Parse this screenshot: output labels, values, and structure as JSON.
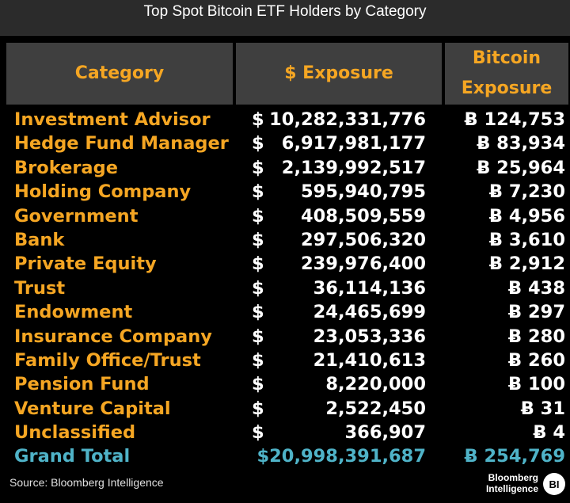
{
  "title": "Top Spot Bitcoin ETF Holders by Category",
  "headers": {
    "category": "Category",
    "exposure": "$ Exposure",
    "btc_line1": "Bitcoin",
    "btc_line2": "Exposure"
  },
  "colors": {
    "accent_orange": "#f5a623",
    "total_teal": "#4fb3c8",
    "header_bg": "#3f3f3f",
    "title_bg": "#2b2b2b"
  },
  "chart_data": {
    "type": "table",
    "columns": [
      "Category",
      "$ Exposure",
      "Bitcoin Exposure"
    ],
    "rows": [
      {
        "category": "Investment Advisor",
        "dollar": "$",
        "exposure": "10,282,331,776",
        "btc": "Ƀ 124,753"
      },
      {
        "category": "Hedge Fund Manager",
        "dollar": "$",
        "exposure": "6,917,981,177",
        "btc": "Ƀ 83,934"
      },
      {
        "category": "Brokerage",
        "dollar": "$",
        "exposure": "2,139,992,517",
        "btc": "Ƀ 25,964"
      },
      {
        "category": "Holding Company",
        "dollar": "$",
        "exposure": "595,940,795",
        "btc": "Ƀ 7,230"
      },
      {
        "category": "Government",
        "dollar": "$",
        "exposure": "408,509,559",
        "btc": "Ƀ 4,956"
      },
      {
        "category": "Bank",
        "dollar": "$",
        "exposure": "297,506,320",
        "btc": "Ƀ 3,610"
      },
      {
        "category": "Private Equity",
        "dollar": "$",
        "exposure": "239,976,400",
        "btc": "Ƀ 2,912"
      },
      {
        "category": "Trust",
        "dollar": "$",
        "exposure": "36,114,136",
        "btc": "Ƀ 438"
      },
      {
        "category": "Endowment",
        "dollar": "$",
        "exposure": "24,465,699",
        "btc": "Ƀ 297"
      },
      {
        "category": "Insurance Company",
        "dollar": "$",
        "exposure": "23,053,336",
        "btc": "Ƀ 280"
      },
      {
        "category": "Family Office/Trust",
        "dollar": "$",
        "exposure": "21,410,613",
        "btc": "Ƀ 260"
      },
      {
        "category": "Pension Fund",
        "dollar": "$",
        "exposure": "8,220,000",
        "btc": "Ƀ 100"
      },
      {
        "category": "Venture Capital",
        "dollar": "$",
        "exposure": "2,522,450",
        "btc": "Ƀ 31"
      },
      {
        "category": "Unclassified",
        "dollar": "$",
        "exposure": "366,907",
        "btc": "Ƀ 4"
      }
    ],
    "total": {
      "category": "Grand Total",
      "exposure": "$20,998,391,687",
      "btc": "Ƀ 254,769"
    }
  },
  "footer": {
    "source": "Source: Bloomberg Intelligence",
    "logo_line1": "Bloomberg",
    "logo_line2": "Intelligence",
    "logo_badge": "BI"
  }
}
